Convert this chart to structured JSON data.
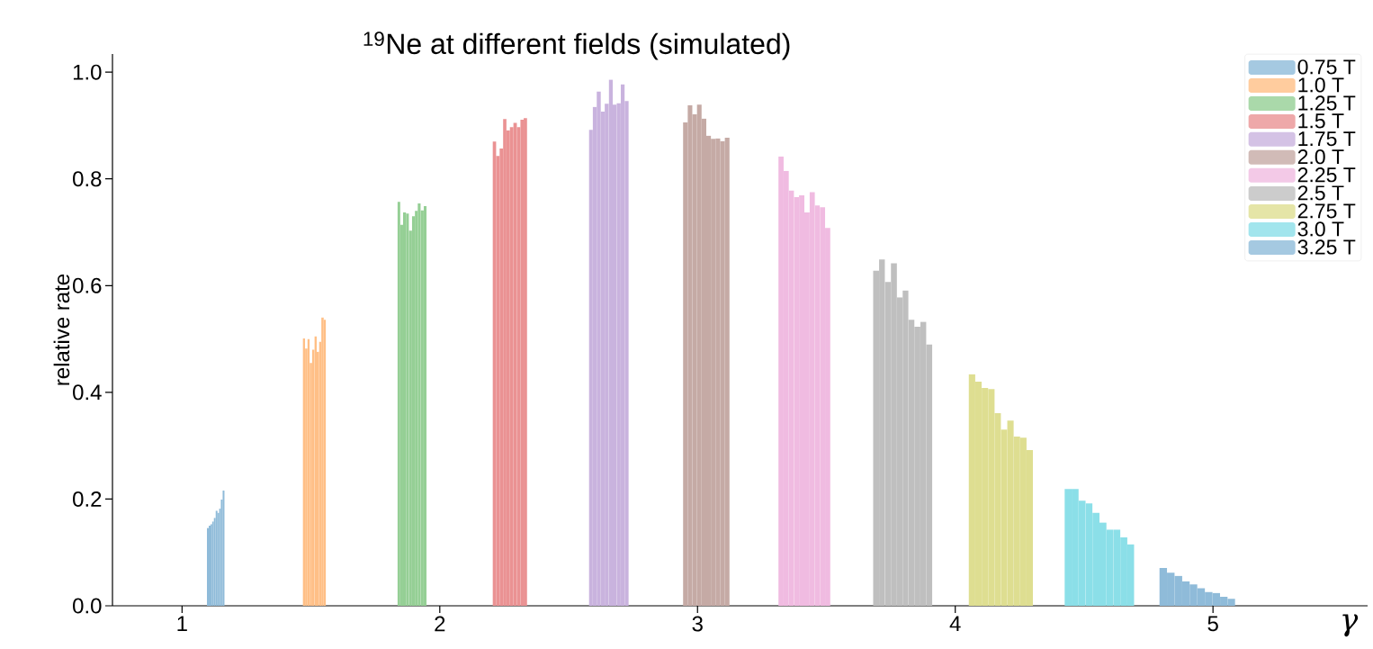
{
  "chart_data": {
    "type": "bar",
    "title": "$^{19}$Ne at different fields (simulated)",
    "xlabel": "γ",
    "ylabel": "relative rate",
    "xlim": [
      0.73,
      5.6
    ],
    "ylim": [
      0,
      1.034
    ],
    "xticks": [
      1,
      2,
      3,
      4,
      5
    ],
    "yticks": [
      {
        "value": 0,
        "label": "0.0"
      },
      {
        "value": 0.2,
        "label": "0.2"
      },
      {
        "value": 0.4,
        "label": "0.4"
      },
      {
        "value": 0.6,
        "label": "0.6"
      },
      {
        "value": 0.8,
        "label": "0.8"
      },
      {
        "value": 1.0,
        "label": "1.0"
      }
    ],
    "legend": "top right",
    "series": [
      {
        "name": "0.75 T",
        "color": "#8fbbd9",
        "x": [
          1.1,
          1.107,
          1.114,
          1.12,
          1.127,
          1.134,
          1.141,
          1.147,
          1.154,
          1.161
        ],
        "values": [
          0.146,
          0.15,
          0.153,
          0.158,
          0.165,
          0.178,
          0.174,
          0.182,
          0.199,
          0.216
        ]
      },
      {
        "name": "1.0 T",
        "color": "#ffbf86",
        "x": [
          1.473,
          1.482,
          1.491,
          1.5,
          1.509,
          1.518,
          1.527,
          1.536,
          1.545,
          1.554
        ],
        "values": [
          0.501,
          0.482,
          0.5,
          0.455,
          0.48,
          0.505,
          0.476,
          0.495,
          0.54,
          0.536
        ]
      },
      {
        "name": "1.25 T",
        "color": "#95cf95",
        "x": [
          1.841,
          1.852,
          1.863,
          1.875,
          1.886,
          1.898,
          1.909,
          1.92,
          1.932,
          1.943
        ],
        "values": [
          0.757,
          0.714,
          0.737,
          0.735,
          0.703,
          0.73,
          0.74,
          0.754,
          0.741,
          0.749
        ]
      },
      {
        "name": "1.5 T",
        "color": "#ea9293",
        "x": [
          2.212,
          2.225,
          2.239,
          2.252,
          2.265,
          2.279,
          2.292,
          2.306,
          2.319,
          2.332
        ],
        "values": [
          0.87,
          0.843,
          0.857,
          0.912,
          0.891,
          0.897,
          0.905,
          0.897,
          0.911,
          0.914
        ]
      },
      {
        "name": "1.75 T",
        "color": "#c9b3de",
        "x": [
          2.586,
          2.601,
          2.617,
          2.632,
          2.648,
          2.663,
          2.679,
          2.694,
          2.71,
          2.725
        ],
        "values": [
          0.892,
          0.935,
          0.964,
          0.926,
          0.941,
          0.986,
          0.939,
          0.942,
          0.977,
          0.946
        ]
      },
      {
        "name": "2.0 T",
        "color": "#c5aaa5",
        "x": [
          2.953,
          2.971,
          2.989,
          3.007,
          3.025,
          3.043,
          3.061,
          3.079,
          3.097,
          3.115
        ],
        "values": [
          0.906,
          0.938,
          0.921,
          0.939,
          0.913,
          0.881,
          0.875,
          0.876,
          0.871,
          0.877
        ]
      },
      {
        "name": "2.25 T",
        "color": "#f0bbe1",
        "x": [
          3.324,
          3.344,
          3.364,
          3.384,
          3.404,
          3.425,
          3.445,
          3.465,
          3.485,
          3.505
        ],
        "values": [
          0.842,
          0.815,
          0.778,
          0.766,
          0.769,
          0.737,
          0.775,
          0.75,
          0.747,
          0.708
        ]
      },
      {
        "name": "2.5 T",
        "color": "#bfbfbf",
        "x": [
          3.693,
          3.716,
          3.739,
          3.762,
          3.785,
          3.807,
          3.83,
          3.853,
          3.876,
          3.899
        ],
        "values": [
          0.628,
          0.649,
          0.607,
          0.642,
          0.578,
          0.591,
          0.536,
          0.523,
          0.532,
          0.49
        ]
      },
      {
        "name": "2.75 T",
        "color": "#dede91",
        "x": [
          4.065,
          4.09,
          4.115,
          4.14,
          4.165,
          4.189,
          4.214,
          4.239,
          4.264,
          4.289
        ],
        "values": [
          0.434,
          0.42,
          0.408,
          0.406,
          0.361,
          0.33,
          0.347,
          0.317,
          0.315,
          0.292
        ]
      },
      {
        "name": "3.0 T",
        "color": "#8bdfe8",
        "x": [
          4.438,
          4.465,
          4.492,
          4.519,
          4.546,
          4.573,
          4.6,
          4.627,
          4.654,
          4.681
        ],
        "values": [
          0.219,
          0.219,
          0.197,
          0.192,
          0.174,
          0.156,
          0.143,
          0.143,
          0.128,
          0.115
        ]
      },
      {
        "name": "3.25 T",
        "color": "#8fbbd9",
        "x": [
          4.807,
          4.836,
          4.866,
          4.895,
          4.924,
          4.954,
          4.983,
          5.013,
          5.042,
          5.071
        ],
        "values": [
          0.071,
          0.062,
          0.056,
          0.046,
          0.04,
          0.033,
          0.026,
          0.024,
          0.017,
          0.013
        ]
      }
    ]
  }
}
